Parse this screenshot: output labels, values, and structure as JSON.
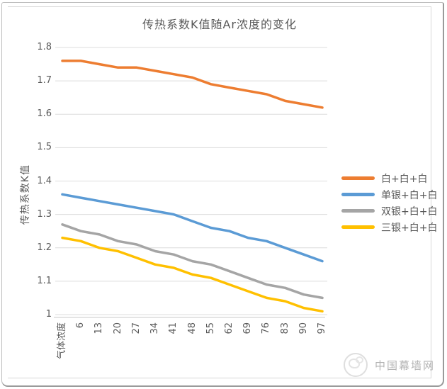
{
  "page": {
    "watermark": {
      "text": "中国幕墙网",
      "logo": "panda-logo"
    }
  },
  "chart_data": {
    "type": "line",
    "title": "传热系数K值随Ar浓度的变化",
    "xlabel": "气体浓度",
    "ylabel": "传热系数K值",
    "categories": [
      "气体浓度",
      "6",
      "13",
      "20",
      "27",
      "34",
      "41",
      "48",
      "55",
      "62",
      "69",
      "76",
      "83",
      "90",
      "97"
    ],
    "yticks": [
      "1.8",
      "1.7",
      "1.6",
      "1.5",
      "1.4",
      "1.3",
      "1.2",
      "1.1",
      "1"
    ],
    "ylim": [
      1,
      1.8
    ],
    "grid": true,
    "legend_position": "right",
    "series": [
      {
        "name": "白+白+白",
        "color": "#ED7D31",
        "values": [
          1.76,
          1.76,
          1.75,
          1.74,
          1.74,
          1.73,
          1.72,
          1.71,
          1.69,
          1.68,
          1.67,
          1.66,
          1.64,
          1.63,
          1.62
        ]
      },
      {
        "name": "单银+白+白",
        "color": "#5B9BD5",
        "values": [
          1.36,
          1.35,
          1.34,
          1.33,
          1.32,
          1.31,
          1.3,
          1.28,
          1.26,
          1.25,
          1.23,
          1.22,
          1.2,
          1.18,
          1.16
        ]
      },
      {
        "name": "双银+白+白",
        "color": "#A5A5A5",
        "values": [
          1.27,
          1.25,
          1.24,
          1.22,
          1.21,
          1.19,
          1.18,
          1.16,
          1.15,
          1.13,
          1.11,
          1.09,
          1.08,
          1.06,
          1.05
        ]
      },
      {
        "name": "三银+白+白",
        "color": "#FFC000",
        "values": [
          1.23,
          1.22,
          1.2,
          1.19,
          1.17,
          1.15,
          1.14,
          1.12,
          1.11,
          1.09,
          1.07,
          1.05,
          1.04,
          1.02,
          1.01
        ]
      }
    ]
  }
}
